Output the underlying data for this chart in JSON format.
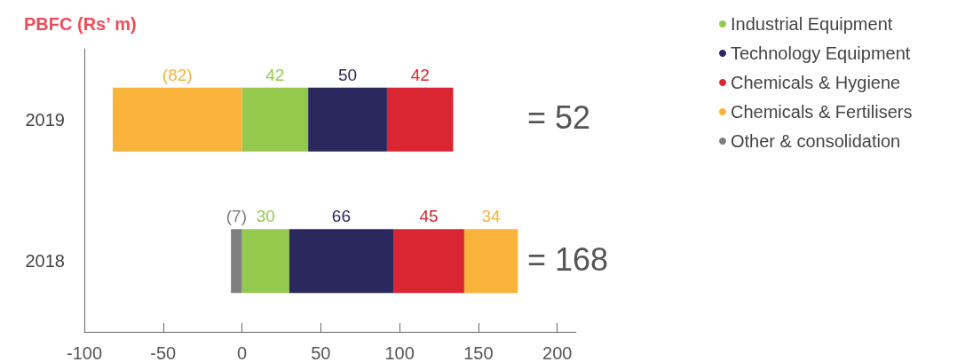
{
  "chart_data": {
    "type": "bar",
    "orientation": "horizontal",
    "stacked": true,
    "title": "PBFC (Rs’ m)",
    "categories": [
      "2019",
      "2018"
    ],
    "series": [
      {
        "name": "Industrial Equipment",
        "color": "#95c94d",
        "values": [
          42,
          30
        ],
        "value_labels": [
          "42",
          "30"
        ]
      },
      {
        "name": "Technology Equipment",
        "color": "#2a285d",
        "values": [
          50,
          66
        ],
        "value_labels": [
          "50",
          "66"
        ]
      },
      {
        "name": "Chemicals & Hygiene",
        "color": "#d92632",
        "values": [
          42,
          45
        ],
        "value_labels": [
          "42",
          "45"
        ]
      },
      {
        "name": "Chemicals & Fertilisers",
        "color": "#f9b23a",
        "values": [
          -82,
          34
        ],
        "value_labels": [
          "(82)",
          "34"
        ]
      },
      {
        "name": "Other & consolidation",
        "color": "#7f7f7f",
        "values": [
          null,
          -7
        ],
        "value_labels": [
          null,
          "(7)"
        ]
      }
    ],
    "totals": [
      "= 52",
      "= 168"
    ],
    "xlim": [
      -100,
      212
    ],
    "xticks": [
      -100,
      -50,
      0,
      50,
      100,
      150,
      200
    ],
    "grid": false,
    "legend": "right"
  }
}
